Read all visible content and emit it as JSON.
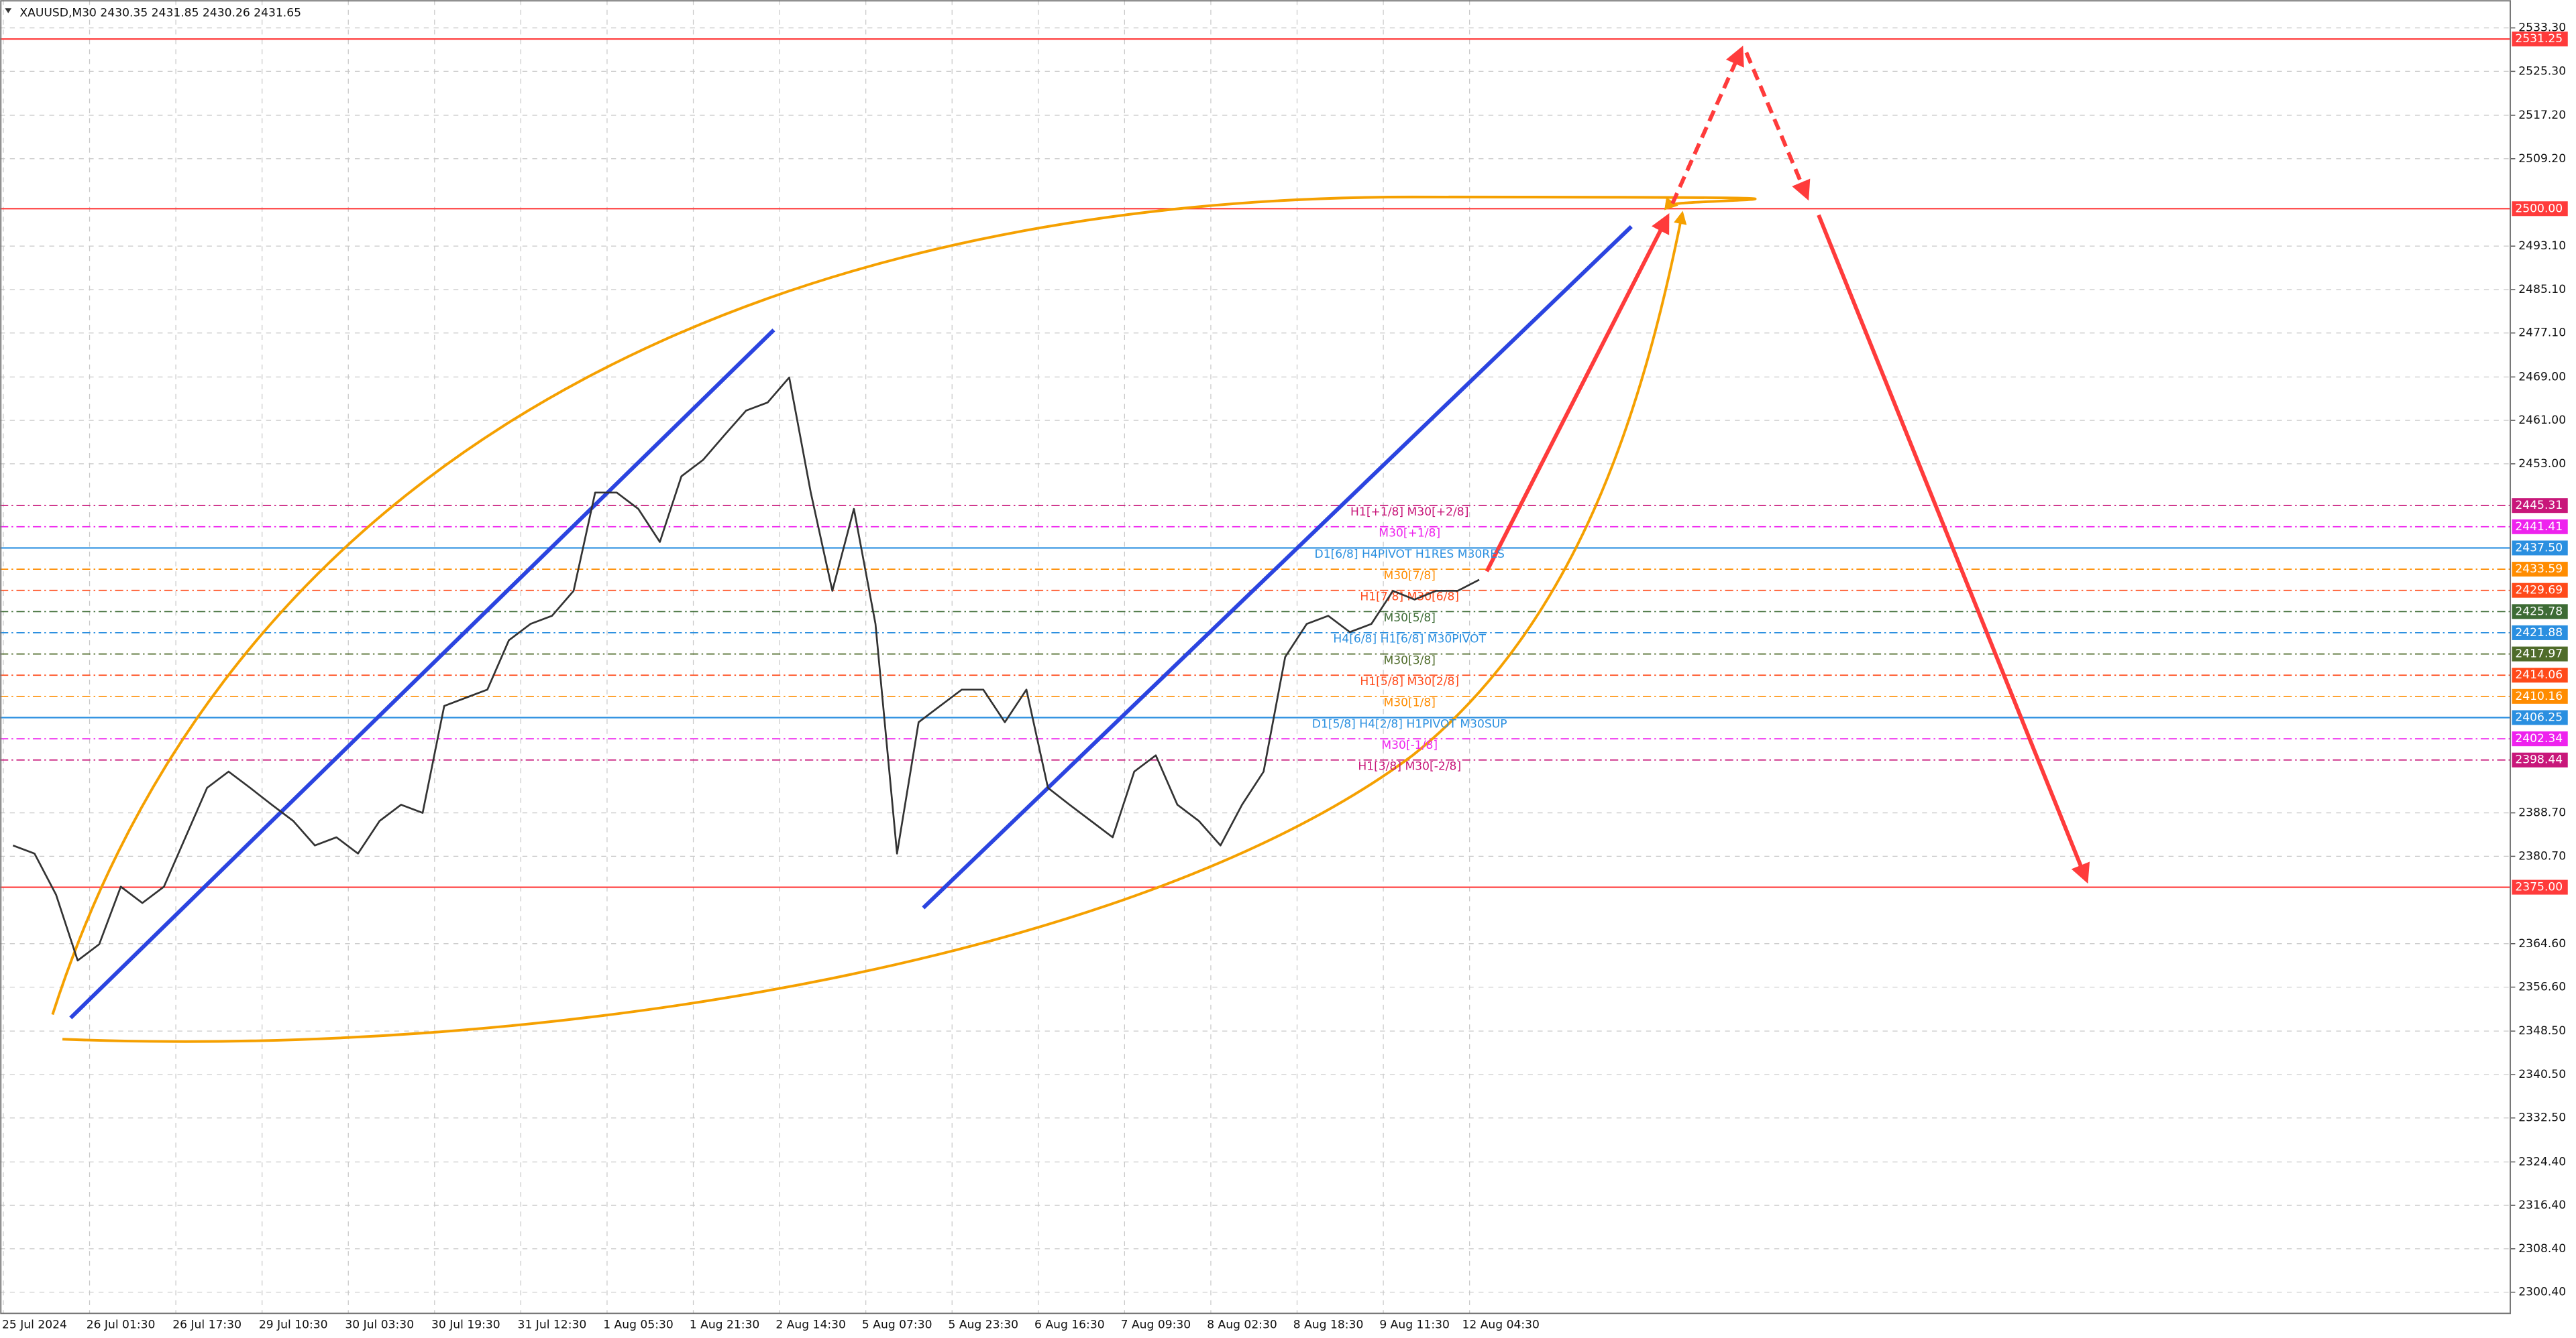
{
  "chart_data": {
    "type": "line",
    "title": "XAUUSD,M30  2430.35 2431.85 2430.26 2431.65",
    "categories": [
      null,
      "25 Jul 2024",
      null,
      null,
      null,
      "26 Jul 01:30",
      null,
      null,
      null,
      "26 Jul 17:30",
      null,
      null,
      null,
      "29 Jul 10:30",
      null,
      null,
      null,
      "30 Jul 03:30",
      null,
      null,
      null,
      "30 Jul 19:30",
      null,
      null,
      null,
      "31 Jul 12:30",
      null,
      null,
      null,
      "1 Aug 05:30",
      null,
      null,
      null,
      "1 Aug 21:30",
      null,
      null,
      null,
      "2 Aug 14:30",
      null,
      null,
      null,
      "5 Aug 07:30",
      null,
      null,
      null,
      "5 Aug 23:30",
      null,
      null,
      null,
      "6 Aug 16:30",
      null,
      null,
      null,
      "7 Aug 09:30",
      null,
      null,
      null,
      "8 Aug 02:30",
      null,
      null,
      null,
      "8 Aug 18:30",
      null,
      null,
      null,
      "9 Aug 11:30",
      null,
      null,
      null,
      "12 Aug 04:30"
    ],
    "series": [
      {
        "name": "XAUUSD",
        "color": "#333333",
        "values": [
          2382.7,
          2381.2,
          2373.6,
          2361.5,
          2364.5,
          2375.1,
          2372.1,
          2375.1,
          2384.2,
          2393.3,
          2396.3,
          2393.3,
          2390.2,
          2387.2,
          2382.7,
          2384.2,
          2381.2,
          2387.2,
          2390.2,
          2388.7,
          2408.4,
          2409.9,
          2411.4,
          2420.5,
          2423.5,
          2425.0,
          2429.6,
          2447.7,
          2447.7,
          2444.7,
          2438.6,
          2450.7,
          2453.7,
          2458.3,
          2462.8,
          2464.3,
          2468.9,
          2447.7,
          2429.6,
          2444.7,
          2423.5,
          2381.2,
          2405.4,
          2408.4,
          2411.4,
          2411.4,
          2405.4,
          2411.4,
          2393.3,
          2390.2,
          2387.2,
          2384.2,
          2396.3,
          2399.3,
          2390.2,
          2387.2,
          2382.7,
          2390.2,
          2396.3,
          2417.4,
          2423.5,
          2425.0,
          2422.0,
          2423.5,
          2429.6,
          2428.0,
          2429.6,
          2429.6,
          2431.65,
          null
        ]
      }
    ],
    "ylim": [
      2296.5,
      2538.44
    ],
    "yticks": [
      {
        "value": 2533.3,
        "label": "2533.30"
      },
      {
        "value": 2525.3,
        "label": "2525.30"
      },
      {
        "value": 2517.2,
        "label": "2517.20"
      },
      {
        "value": 2509.2,
        "label": "2509.20"
      },
      {
        "value": 2493.1,
        "label": "2493.10"
      },
      {
        "value": 2485.1,
        "label": "2485.10"
      },
      {
        "value": 2477.1,
        "label": "2477.10"
      },
      {
        "value": 2469,
        "label": "2469.00"
      },
      {
        "value": 2461,
        "label": "2461.00"
      },
      {
        "value": 2453,
        "label": "2453.00"
      },
      {
        "value": 2388.7,
        "label": "2388.70"
      },
      {
        "value": 2380.7,
        "label": "2380.70"
      },
      {
        "value": 2364.6,
        "label": "2364.60"
      },
      {
        "value": 2356.6,
        "label": "2356.60"
      },
      {
        "value": 2348.5,
        "label": "2348.50"
      },
      {
        "value": 2340.5,
        "label": "2340.50"
      },
      {
        "value": 2332.5,
        "label": "2332.50"
      },
      {
        "value": 2324.4,
        "label": "2324.40"
      },
      {
        "value": 2316.4,
        "label": "2316.40"
      },
      {
        "value": 2308.4,
        "label": "2308.40"
      },
      {
        "value": 2300.4,
        "label": "2300.40"
      }
    ],
    "grid": true,
    "levels": [
      {
        "value": 2531.25,
        "label": "2531.25",
        "color": "#ff3b3b",
        "dashed": false
      },
      {
        "value": 2500,
        "label": "2500.00",
        "color": "#ff3b3b",
        "dashed": false
      },
      {
        "value": 2445.31,
        "label": "2445.31",
        "color": "#c8177a",
        "dashed": true,
        "text": "H1[+1/8] M30[+2/8]"
      },
      {
        "value": 2441.41,
        "label": "2441.41",
        "color": "#ee22ee",
        "dashed": true,
        "text": "M30[+1/8]"
      },
      {
        "value": 2437.5,
        "label": "2437.50",
        "color": "#2a8fe0",
        "dashed": false,
        "text": "D1[6/8] H4PIVOT H1RES M30RES"
      },
      {
        "value": 2433.59,
        "label": "2433.59",
        "color": "#ff8c00",
        "dashed": true,
        "text": "M30[7/8]"
      },
      {
        "value": 2429.69,
        "label": "2429.69",
        "color": "#ff4a1a",
        "dashed": true,
        "text": "H1[7/8] M30[6/8]"
      },
      {
        "value": 2425.78,
        "label": "2425.78",
        "color": "#3d6b35",
        "dashed": true,
        "text": "M30[5/8]"
      },
      {
        "value": 2421.88,
        "label": "2421.88",
        "color": "#2a8fe0",
        "dashed": true,
        "text": "H4[6/8] H1[6/8] M30PIVOT"
      },
      {
        "value": 2417.97,
        "label": "2417.97",
        "color": "#4f6b2a",
        "dashed": true,
        "text": "M30[3/8]"
      },
      {
        "value": 2414.06,
        "label": "2414.06",
        "color": "#ff4a1a",
        "dashed": true,
        "text": "H1[5/8] M30[2/8]"
      },
      {
        "value": 2410.16,
        "label": "2410.16",
        "color": "#ff8c00",
        "dashed": true,
        "text": "M30[1/8]"
      },
      {
        "value": 2406.25,
        "label": "2406.25",
        "color": "#2a8fe0",
        "dashed": false,
        "text": "D1[5/8] H4[2/8] H1PIVOT M30SUP"
      },
      {
        "value": 2402.34,
        "label": "2402.34",
        "color": "#ee22ee",
        "dashed": true,
        "text": "M30[-1/8]"
      },
      {
        "value": 2398.44,
        "label": "2398.44",
        "color": "#c8177a",
        "dashed": true,
        "text": "H1[3/8] M30[-2/8]"
      },
      {
        "value": 2375,
        "label": "2375.00",
        "color": "#ff3b3b",
        "dashed": false
      }
    ]
  }
}
